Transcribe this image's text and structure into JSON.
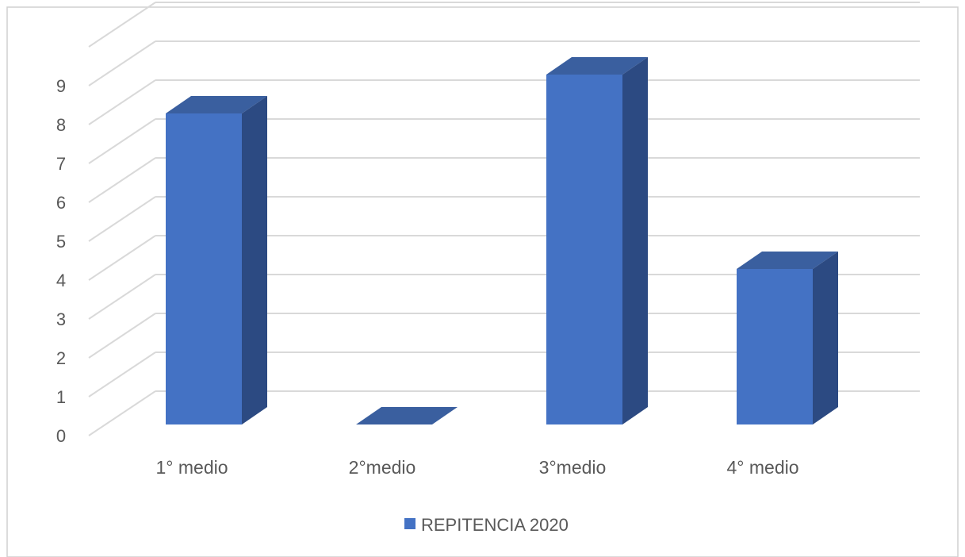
{
  "chart_data": {
    "type": "bar",
    "style": "3d-column",
    "categories": [
      "1° medio",
      "2°medio",
      "3°medio",
      "4° medio"
    ],
    "series": [
      {
        "name": "REPITENCIA 2020",
        "values": [
          8,
          0,
          9,
          4
        ]
      }
    ],
    "ylim": [
      0,
      9
    ],
    "yticks": [
      "0",
      "1",
      "2",
      "3",
      "4",
      "5",
      "6",
      "7",
      "8",
      "9"
    ],
    "grid": true,
    "legend": "bottom-center",
    "colors": {
      "front": "#4472C4",
      "side": "#2C4A82",
      "top": "#3A5F9F",
      "grid": "#D9D9D9",
      "text": "#595959",
      "frame": "#D0D0D0"
    }
  }
}
